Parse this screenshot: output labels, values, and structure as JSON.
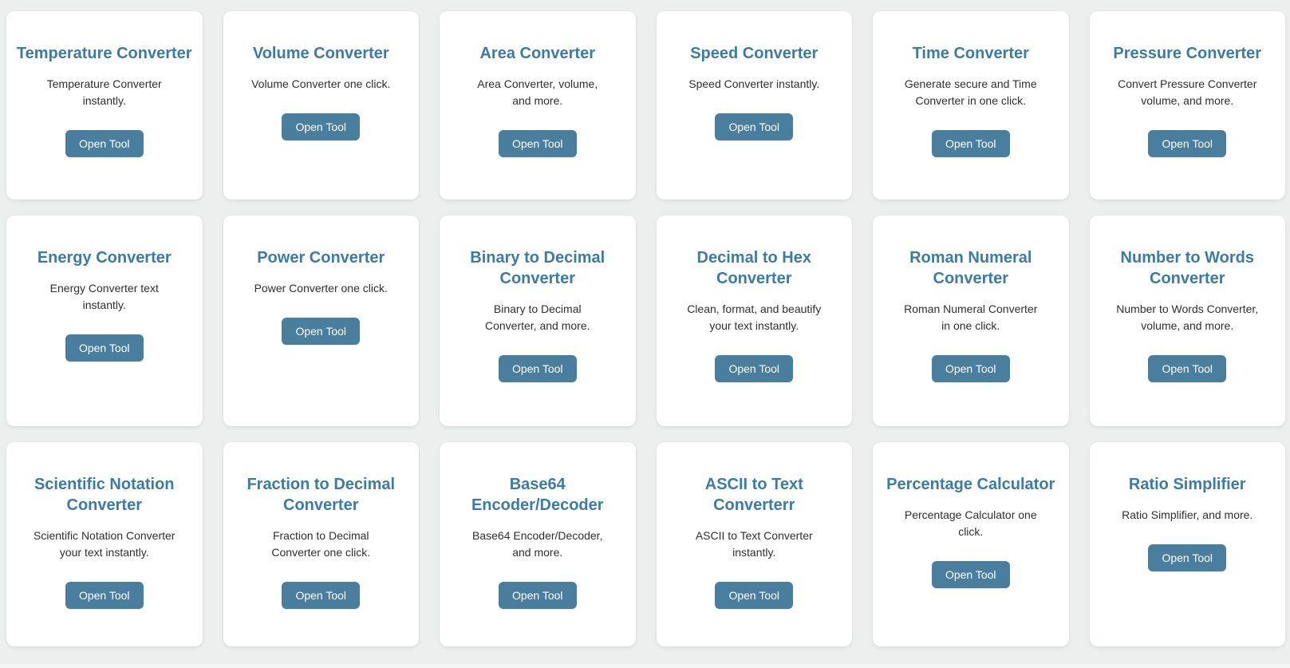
{
  "theme": {
    "page_background": "#edeeee",
    "card_background": "#ffffff",
    "title_color": "#3a7ca6",
    "description_color": "#2f2f2f",
    "button_background": "#4a7e9e",
    "button_text_color": "#ffffff"
  },
  "tools_grid": {
    "cards": [
      {
        "title": "Temperature Converter",
        "description": "Temperature Converter instantly.",
        "button_label": "Open Tool"
      },
      {
        "title": "Volume Converter",
        "description": "Volume Converter one click.",
        "button_label": "Open Tool"
      },
      {
        "title": "Area Converter",
        "description": "Area Converter, volume, and more.",
        "button_label": "Open Tool"
      },
      {
        "title": "Speed Converter",
        "description": "Speed Converter instantly.",
        "button_label": "Open Tool"
      },
      {
        "title": "Time Converter",
        "description": "Generate secure and Time Converter in one click.",
        "button_label": "Open Tool"
      },
      {
        "title": "Pressure Converter",
        "description": "Convert Pressure Converter volume, and more.",
        "button_label": "Open Tool"
      },
      {
        "title": "Energy Converter",
        "description": "Energy Converter text instantly.",
        "button_label": "Open Tool"
      },
      {
        "title": "Power Converter",
        "description": "Power Converter one click.",
        "button_label": "Open Tool"
      },
      {
        "title": "Binary to Decimal Converter",
        "description": "Binary to Decimal Converter, and more.",
        "button_label": "Open Tool"
      },
      {
        "title": "Decimal to Hex Converter",
        "description": "Clean, format, and beautify your text instantly.",
        "button_label": "Open Tool"
      },
      {
        "title": "Roman Numeral Converter",
        "description": "Roman Numeral Converter in one click.",
        "button_label": "Open Tool"
      },
      {
        "title": "Number to Words Converter",
        "description": "Number to Words Converter, volume, and more.",
        "button_label": "Open Tool"
      },
      {
        "title": "Scientific Notation Converter",
        "description": "Scientific Notation Converter your text instantly.",
        "button_label": "Open Tool"
      },
      {
        "title": "Fraction to Decimal Converter",
        "description": "Fraction to Decimal Converter one click.",
        "button_label": "Open Tool"
      },
      {
        "title": "Base64 Encoder/Decoder",
        "description": "Base64 Encoder/Decoder, and more.",
        "button_label": "Open Tool"
      },
      {
        "title": "ASCII to Text Converterr",
        "description": "ASCII to Text Converter instantly.",
        "button_label": "Open Tool"
      },
      {
        "title": "Percentage Calculator",
        "description": "Percentage Calculator one click.",
        "button_label": "Open Tool"
      },
      {
        "title": "Ratio Simplifier",
        "description": "Ratio Simplifier, and more.",
        "button_label": "Open Tool"
      }
    ]
  }
}
